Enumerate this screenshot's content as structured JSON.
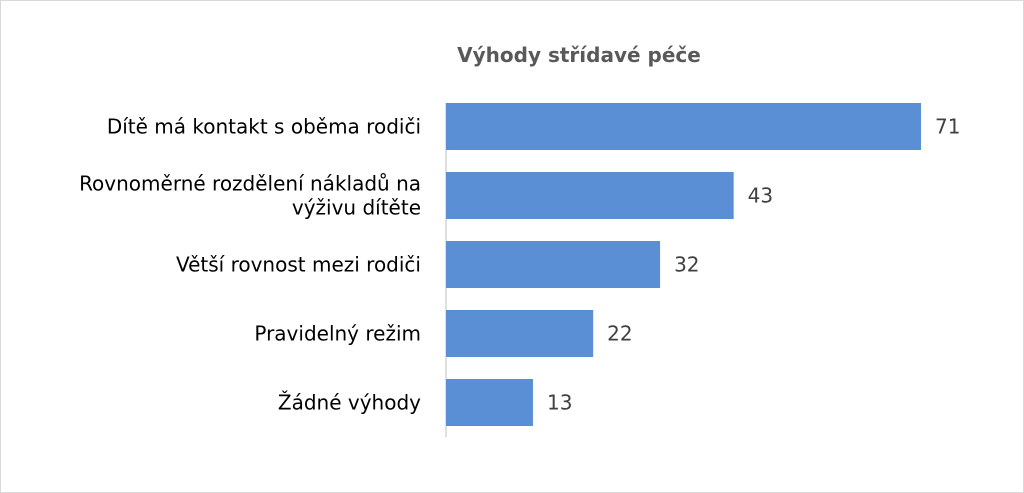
{
  "chart_data": {
    "type": "bar",
    "orientation": "horizontal",
    "title": "Výhody střídavé péče",
    "categories": [
      [
        "Dítě má kontakt s oběma rodiči"
      ],
      [
        "Rovnoměrné rozdělení nákladů na",
        "výživu dítěte"
      ],
      [
        "Větší rovnost mezi rodiči"
      ],
      [
        "Pravidelný režim"
      ],
      [
        "Žádné výhody"
      ]
    ],
    "values": [
      71,
      43,
      32,
      22,
      13
    ],
    "data_labels": [
      "71",
      "43",
      "32",
      "22",
      "13"
    ],
    "xlim": [
      0,
      71
    ],
    "grid": false,
    "legend": "none",
    "colors": {
      "bar": "#5a8fd6",
      "axis": "#bfbfbf",
      "title": "#595959",
      "label": "#000000",
      "value": "#404040"
    }
  }
}
